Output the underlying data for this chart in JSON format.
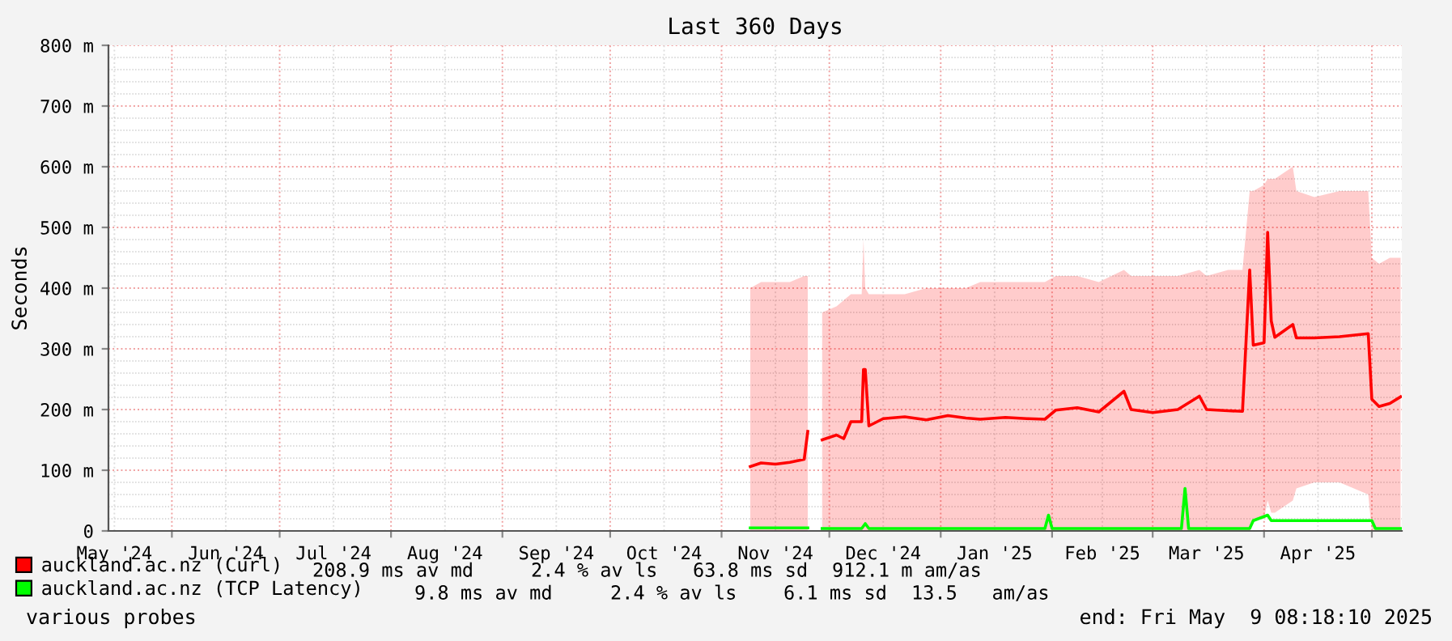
{
  "chart_data": {
    "type": "line",
    "title": "Last 360 Days",
    "ylabel": "Seconds",
    "xlim": [
      "2024-05-14T08:18",
      "2025-05-09T08:18"
    ],
    "xticks": [
      {
        "value": "2024-05-16",
        "label": "May '24"
      },
      {
        "value": "2024-06-01",
        "label": null
      },
      {
        "value": "2024-06-16",
        "label": "Jun '24"
      },
      {
        "value": "2024-07-01",
        "label": null
      },
      {
        "value": "2024-07-16",
        "label": "Jul '24"
      },
      {
        "value": "2024-08-01",
        "label": null
      },
      {
        "value": "2024-08-16",
        "label": "Aug '24"
      },
      {
        "value": "2024-09-01",
        "label": null
      },
      {
        "value": "2024-09-16",
        "label": "Sep '24"
      },
      {
        "value": "2024-10-01",
        "label": null
      },
      {
        "value": "2024-10-16",
        "label": "Oct '24"
      },
      {
        "value": "2024-11-01",
        "label": null
      },
      {
        "value": "2024-11-16",
        "label": "Nov '24"
      },
      {
        "value": "2024-12-01",
        "label": null
      },
      {
        "value": "2024-12-16",
        "label": "Dec '24"
      },
      {
        "value": "2025-01-01",
        "label": null
      },
      {
        "value": "2025-01-16",
        "label": "Jan '25"
      },
      {
        "value": "2025-02-01",
        "label": null
      },
      {
        "value": "2025-02-15",
        "label": "Feb '25"
      },
      {
        "value": "2025-03-01",
        "label": null
      },
      {
        "value": "2025-03-16",
        "label": "Mar '25"
      },
      {
        "value": "2025-04-01",
        "label": null
      },
      {
        "value": "2025-04-16",
        "label": "Apr '25"
      },
      {
        "value": "2025-05-01",
        "label": null
      }
    ],
    "ylim": [
      0,
      800
    ],
    "yticks": [
      0,
      {
        "value": 100,
        "label": "100 m"
      },
      {
        "value": 200,
        "label": "200 m"
      },
      {
        "value": 300,
        "label": "300 m"
      },
      {
        "value": 400,
        "label": "400 m"
      },
      {
        "value": 500,
        "label": "500 m"
      },
      {
        "value": 600,
        "label": "600 m"
      },
      {
        "value": 700,
        "label": "700 m"
      },
      {
        "value": 800,
        "label": "800 m"
      }
    ],
    "grid": true,
    "legend": "bottom",
    "marker": "none",
    "line_style": "solid",
    "series": [
      {
        "name": "auckland.ac.nz (Curl)",
        "color": "#ff0000",
        "x": [
          "2024-11-09",
          "2024-11-12",
          "2024-11-16",
          "2024-11-20",
          "2024-11-24",
          "2024-11-25",
          "2024-11-27",
          "2024-11-29",
          "2024-12-03",
          "2024-12-05",
          "2024-12-07",
          "2024-12-10",
          "2024-12-10T12:00",
          "2024-12-11",
          "2024-12-12",
          "2024-12-16",
          "2024-12-22",
          "2024-12-28",
          "2025-01-03",
          "2025-01-08",
          "2025-01-12",
          "2025-01-19",
          "2025-01-25",
          "2025-01-30",
          "2025-02-02",
          "2025-02-08",
          "2025-02-14",
          "2025-02-21",
          "2025-02-23",
          "2025-03-01",
          "2025-03-08",
          "2025-03-14",
          "2025-03-16",
          "2025-03-22",
          "2025-03-26",
          "2025-03-28",
          "2025-03-29",
          "2025-04-01",
          "2025-04-02",
          "2025-04-03",
          "2025-04-04",
          "2025-04-09",
          "2025-04-10",
          "2025-04-15",
          "2025-04-22",
          "2025-04-30",
          "2025-05-01",
          "2025-05-03",
          "2025-05-06",
          "2025-05-09"
        ],
        "values": [
          106,
          112,
          110,
          113,
          118,
          164,
          null,
          150,
          158,
          152,
          180,
          180,
          266,
          266,
          173,
          185,
          188,
          183,
          190,
          186,
          184,
          187,
          185,
          184,
          199,
          203,
          196,
          230,
          200,
          195,
          200,
          222,
          200,
          198,
          197,
          430,
          306,
          310,
          492,
          346,
          319,
          340,
          318,
          318,
          320,
          325,
          217,
          205,
          210,
          221
        ],
        "upper": [
          400,
          410,
          410,
          410,
          420,
          420,
          null,
          360,
          370,
          380,
          390,
          390,
          480,
          400,
          390,
          390,
          390,
          400,
          400,
          400,
          410,
          410,
          410,
          410,
          420,
          420,
          410,
          430,
          420,
          420,
          420,
          430,
          420,
          430,
          430,
          560,
          560,
          570,
          580,
          580,
          580,
          600,
          560,
          550,
          560,
          560,
          450,
          440,
          450,
          450
        ],
        "lower": [
          0,
          0,
          0,
          0,
          0,
          0,
          null,
          0,
          0,
          0,
          0,
          0,
          0,
          0,
          0,
          0,
          0,
          0,
          0,
          0,
          0,
          0,
          0,
          0,
          0,
          0,
          0,
          0,
          0,
          0,
          0,
          0,
          0,
          0,
          0,
          0,
          20,
          20,
          50,
          30,
          30,
          50,
          70,
          80,
          80,
          60,
          0,
          0,
          0,
          0
        ]
      },
      {
        "name": "auckland.ac.nz (TCP Latency)",
        "color": "#00ff00",
        "x": [
          "2024-11-09",
          "2024-11-25",
          "2024-11-27",
          "2024-11-29",
          "2024-12-10",
          "2024-12-11",
          "2024-12-12",
          "2025-01-30",
          "2025-01-31",
          "2025-02-01",
          "2025-03-09",
          "2025-03-10",
          "2025-03-11",
          "2025-03-28",
          "2025-03-29",
          "2025-04-02",
          "2025-04-03",
          "2025-05-01",
          "2025-05-02",
          "2025-05-09"
        ],
        "values": [
          5,
          5,
          null,
          4,
          4,
          12,
          4,
          4,
          26,
          4,
          4,
          70,
          4,
          4,
          17,
          26,
          17,
          17,
          4,
          4
        ]
      }
    ],
    "annotations": [
      "208.9 ms av md",
      "2.4 % av ls",
      "63.8 ms sd",
      "912.1 m am/as",
      "9.8 ms av md",
      "2.4 % av ls",
      "6.1 ms sd",
      "13.5   am/as",
      "various probes",
      "end: Fri May  9 08:18:10 2025"
    ]
  }
}
